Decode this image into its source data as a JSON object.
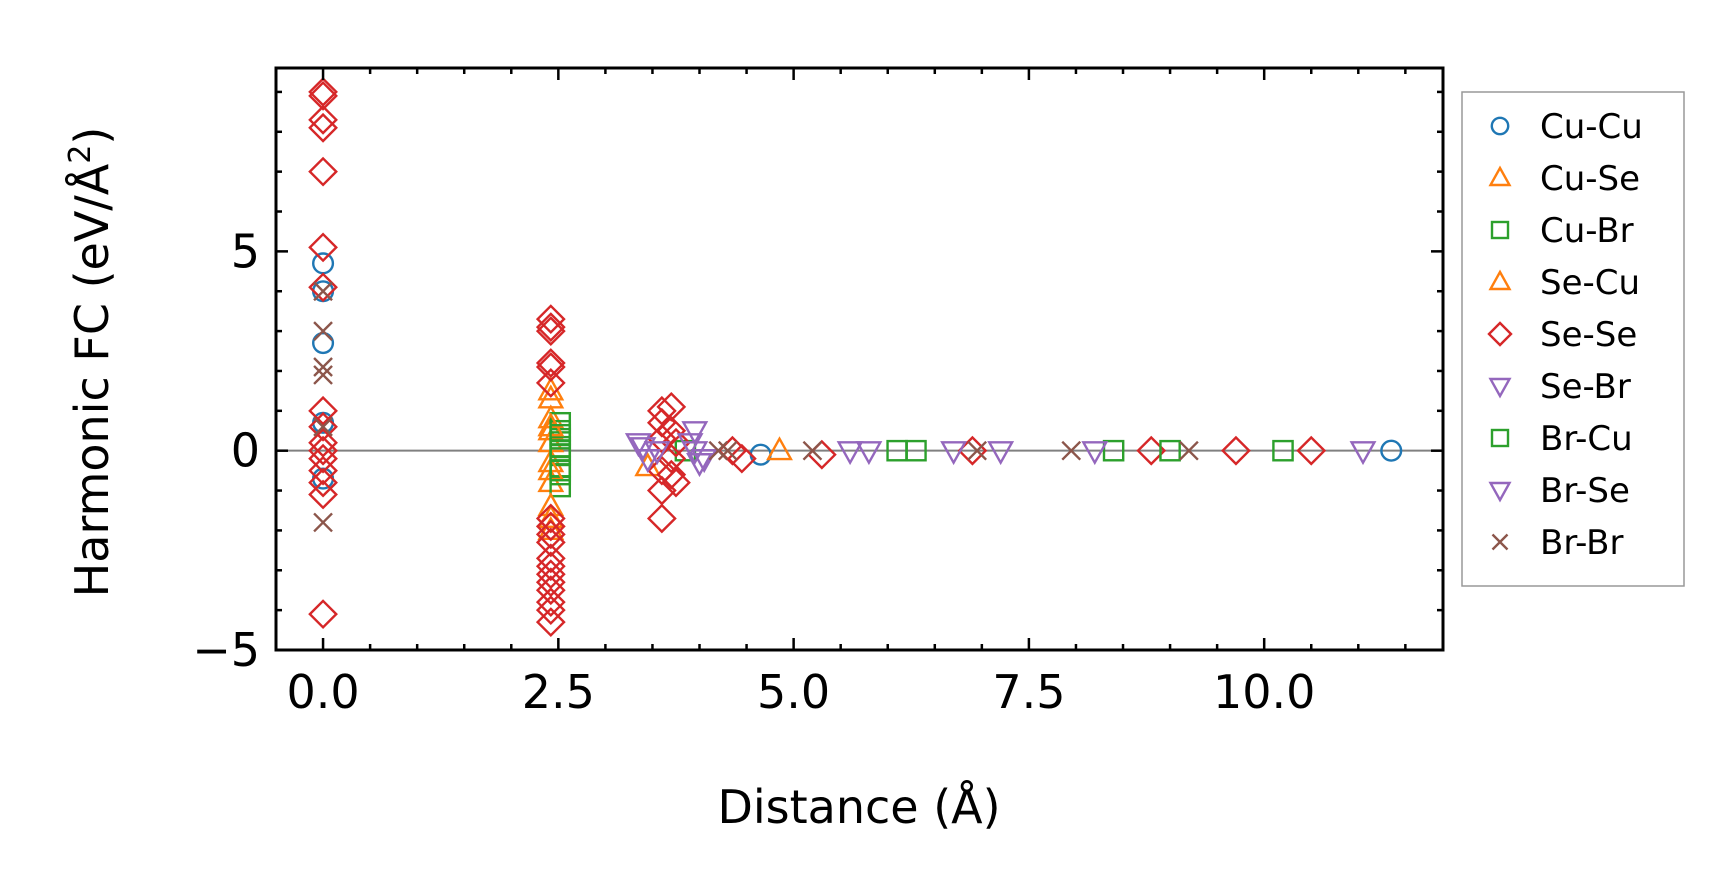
{
  "chart_data": {
    "type": "scatter",
    "xlabel": "Distance (Å)",
    "ylabel_main": "Harmonic FC (eV/Å",
    "ylabel_sup": "2",
    "ylabel_close": ")",
    "xlim": [
      -0.5,
      11.9
    ],
    "ylim": [
      -5,
      9.6
    ],
    "xticks": [
      {
        "value": 0.0,
        "label": "0.0"
      },
      {
        "value": 2.5,
        "label": "2.5"
      },
      {
        "value": 5.0,
        "label": "5.0"
      },
      {
        "value": 7.5,
        "label": "7.5"
      },
      {
        "value": 10.0,
        "label": "10.0"
      }
    ],
    "yticks": [
      {
        "value": -5,
        "label": "−5"
      },
      {
        "value": 0,
        "label": "0"
      },
      {
        "value": 5,
        "label": "5"
      }
    ],
    "x_minor_step": 0.5,
    "y_minor_step": 1,
    "zero_line": true,
    "legend_position": "right-outside",
    "series": [
      {
        "name": "Cu-Cu",
        "color": "#1f77b4",
        "marker": "circle",
        "x": [
          0.0,
          0.0,
          0.0,
          0.0,
          0.0,
          4.65,
          11.35
        ],
        "y": [
          4.7,
          4.0,
          2.7,
          0.7,
          -0.7,
          -0.1,
          0.0
        ]
      },
      {
        "name": "Cu-Se",
        "color": "#ff7f0e",
        "marker": "triangle-up",
        "x": [
          2.42,
          2.42,
          2.42,
          2.42,
          2.42,
          2.42,
          2.42,
          2.42,
          3.45,
          4.85
        ],
        "y": [
          1.5,
          0.8,
          0.5,
          0.2,
          -0.3,
          -0.8,
          -1.7,
          -2.0,
          -0.4,
          0.0
        ]
      },
      {
        "name": "Cu-Br",
        "color": "#2ca02c",
        "marker": "square",
        "x": [
          2.52,
          2.52,
          2.52,
          2.52,
          2.52,
          2.52,
          2.52,
          2.52,
          3.85,
          6.3,
          8.4,
          10.2
        ],
        "y": [
          0.7,
          0.5,
          0.3,
          0.1,
          -0.1,
          -0.4,
          -0.6,
          -0.9,
          0.0,
          0.0,
          0.0,
          0.0
        ]
      },
      {
        "name": "Se-Cu",
        "color": "#ff7f0e",
        "marker": "triangle-up",
        "x": [
          2.42,
          2.42,
          2.42,
          2.42
        ],
        "y": [
          1.3,
          0.6,
          -0.5,
          -1.4
        ]
      },
      {
        "name": "Se-Se",
        "color": "#d62728",
        "marker": "diamond",
        "x": [
          0.0,
          0.0,
          0.0,
          0.0,
          0.0,
          0.0,
          0.0,
          0.0,
          0.0,
          0.0,
          0.0,
          0.0,
          0.0,
          0.0,
          0.0,
          0.0,
          2.42,
          2.42,
          2.42,
          2.42,
          2.42,
          2.42,
          2.42,
          2.42,
          2.42,
          2.42,
          2.42,
          2.42,
          2.42,
          2.42,
          2.42,
          2.42,
          2.42,
          2.42,
          3.6,
          3.6,
          3.6,
          3.6,
          3.6,
          3.6,
          3.7,
          3.7,
          3.7,
          3.7,
          3.75,
          3.75,
          4.35,
          4.45,
          5.3,
          6.9,
          8.8,
          9.7,
          10.5
        ],
        "y": [
          9.0,
          8.9,
          8.3,
          8.1,
          7.0,
          5.1,
          4.1,
          1.0,
          0.6,
          0.2,
          0.0,
          -0.2,
          -0.5,
          -0.8,
          -1.1,
          -4.1,
          3.3,
          3.1,
          3.0,
          2.2,
          2.1,
          1.7,
          -1.7,
          -1.9,
          -2.1,
          -2.3,
          -2.7,
          -2.9,
          -3.1,
          -3.3,
          -3.5,
          -3.8,
          -4.0,
          -4.3,
          1.0,
          0.7,
          0.3,
          -0.5,
          -1.0,
          -1.7,
          1.1,
          0.5,
          -0.2,
          -0.6,
          0.2,
          -0.8,
          0.0,
          -0.2,
          -0.1,
          0.0,
          0.0,
          0.0,
          0.0
        ]
      },
      {
        "name": "Se-Br",
        "color": "#9467bd",
        "marker": "triangle-down",
        "x": [
          3.35,
          3.45,
          3.95,
          3.95,
          4.0,
          5.8,
          7.2,
          11.05
        ],
        "y": [
          0.2,
          -0.2,
          0.5,
          0.0,
          -0.3,
          0.0,
          0.0,
          0.0
        ]
      },
      {
        "name": "Br-Cu",
        "color": "#2ca02c",
        "marker": "square",
        "x": [
          2.52,
          2.52,
          2.52,
          6.1,
          9.0
        ],
        "y": [
          0.4,
          0.0,
          -0.5,
          0.0,
          0.0
        ]
      },
      {
        "name": "Br-Se",
        "color": "#9467bd",
        "marker": "triangle-down",
        "x": [
          3.4,
          3.55,
          3.9,
          4.05,
          5.6,
          6.7,
          8.2
        ],
        "y": [
          0.1,
          0.0,
          0.2,
          -0.2,
          0.0,
          0.0,
          0.0
        ]
      },
      {
        "name": "Br-Br",
        "color": "#8c564b",
        "marker": "cross",
        "x": [
          0.0,
          0.0,
          0.0,
          0.0,
          0.0,
          0.0,
          4.2,
          4.3,
          5.2,
          6.95,
          7.95,
          9.2
        ],
        "y": [
          4.0,
          3.0,
          2.1,
          1.9,
          0.6,
          -1.8,
          0.0,
          0.0,
          0.0,
          0.0,
          0.0,
          0.0
        ]
      }
    ]
  }
}
